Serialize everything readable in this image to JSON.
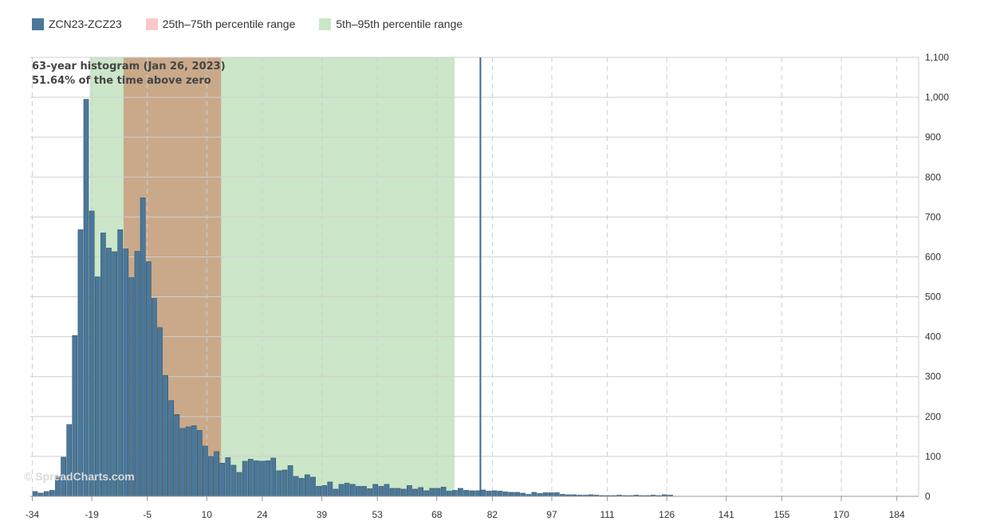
{
  "legend": {
    "items": [
      {
        "label": "ZCN23-ZCZ23",
        "color": "#4b7899"
      },
      {
        "label": "25th–75th percentile range",
        "color": "#f8c9c9"
      },
      {
        "label": "5th–95th percentile range",
        "color": "#cbe6c8"
      }
    ]
  },
  "annotation": {
    "line1": "63-year histogram (Jan 26, 2023)",
    "line2": "51.64% of the time above zero"
  },
  "watermark": "© SpreadCharts.com",
  "colors": {
    "bar_fill": "#4b7899",
    "bar_stroke": "#2f5470",
    "p25_75_fill": "#c9a98a",
    "p5_95_fill": "#cbe6c8",
    "current_line": "#3e6a8d",
    "grid": "#cfcfcf"
  },
  "chart_data": {
    "type": "bar",
    "title": "",
    "xlabel": "",
    "ylabel": "",
    "xlim": [
      -34.5,
      189.5
    ],
    "ylim": [
      0,
      1100
    ],
    "x_ticks": [
      -34,
      -19,
      -5,
      10,
      24,
      39,
      53,
      68,
      82,
      97,
      111,
      126,
      141,
      155,
      170,
      184
    ],
    "y_ticks": [
      0,
      100,
      200,
      300,
      400,
      500,
      600,
      700,
      800,
      900,
      1000,
      1100
    ],
    "grid": {
      "horizontal": true,
      "vertical": "dashed"
    },
    "legend_position": "top-left",
    "bin_width": 1.43,
    "bins_start": -34,
    "series": [
      {
        "name": "ZCN23-ZCZ23",
        "values": [
          12,
          8,
          12,
          15,
          50,
          98,
          180,
          403,
          668,
          995,
          715,
          550,
          660,
          622,
          613,
          668,
          620,
          548,
          614,
          748,
          588,
          496,
          423,
          303,
          240,
          205,
          170,
          174,
          177,
          165,
          126,
          100,
          112,
          83,
          97,
          78,
          60,
          88,
          93,
          89,
          88,
          89,
          96,
          64,
          66,
          77,
          50,
          45,
          54,
          48,
          25,
          27,
          36,
          18,
          30,
          33,
          30,
          25,
          25,
          19,
          30,
          25,
          30,
          20,
          20,
          18,
          27,
          18,
          22,
          14,
          20,
          20,
          23,
          13,
          15,
          20,
          15,
          14,
          14,
          16,
          13,
          14,
          13,
          11,
          10,
          10,
          8,
          5,
          10,
          7,
          9,
          9,
          9,
          5,
          4,
          4,
          3,
          3,
          4,
          3,
          2,
          2,
          2,
          3,
          2,
          2,
          3,
          2,
          2,
          3,
          2,
          4,
          3
        ]
      }
    ],
    "bands": [
      {
        "name": "5th–95th percentile range",
        "x_range": [
          -19.5,
          72.5
        ]
      },
      {
        "name": "25th–75th percentile range",
        "x_range": [
          -11.0,
          13.6
        ]
      }
    ],
    "current_value": 79
  }
}
